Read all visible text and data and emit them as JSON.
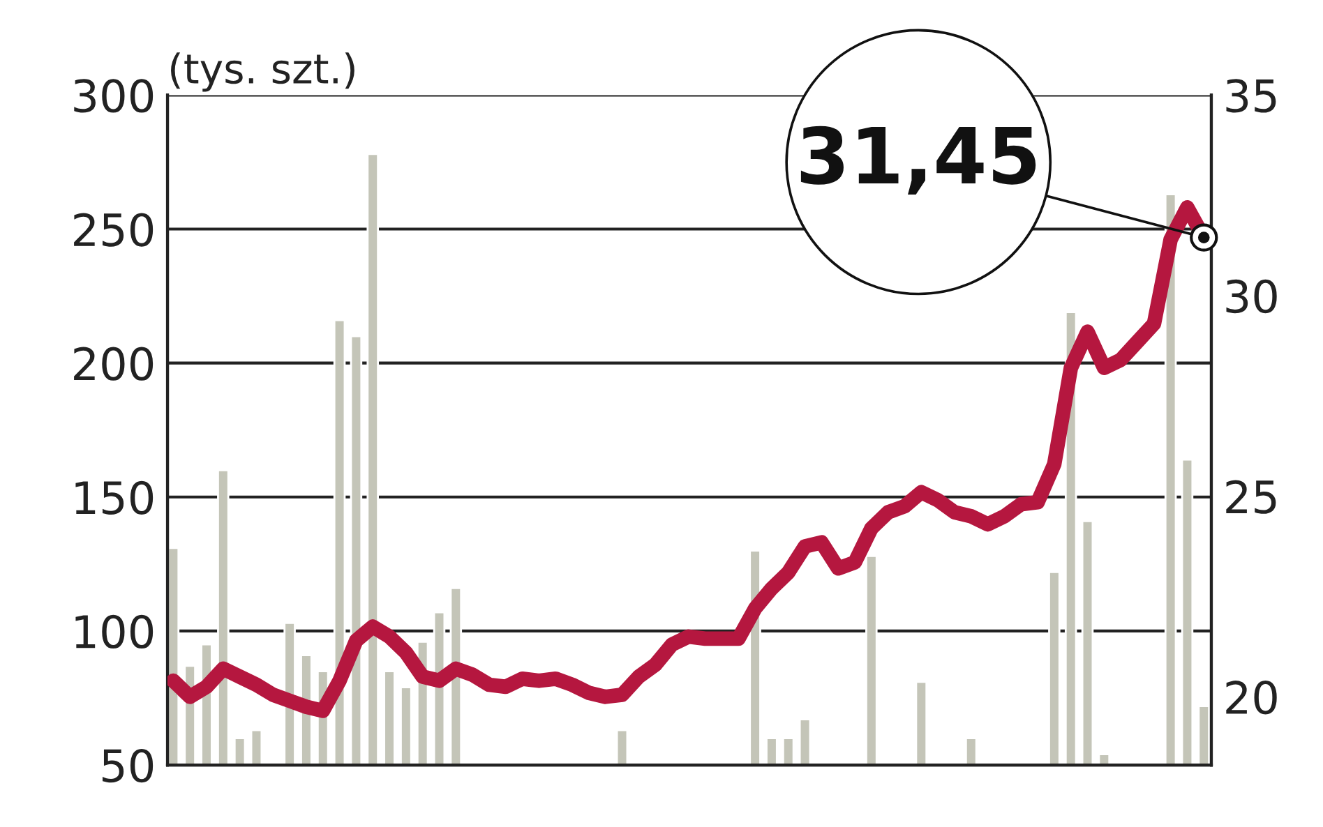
{
  "chart_data": {
    "type": "bar",
    "ylabel": "(tys. szt.)",
    "categories": [
      null,
      null,
      null,
      null,
      null,
      null,
      null,
      null,
      null,
      null,
      null,
      null,
      null,
      null,
      null,
      null,
      null,
      null,
      null,
      null,
      null,
      null,
      null,
      null,
      null,
      null,
      null,
      null,
      null,
      null,
      null,
      null,
      null,
      null,
      null,
      null,
      null,
      null,
      null,
      null,
      null,
      null,
      null,
      null,
      null,
      null,
      null,
      null,
      null,
      null,
      null,
      null,
      null,
      null,
      null,
      null,
      null,
      null,
      null,
      null,
      null,
      null,
      null
    ],
    "series": [
      {
        "color": "#c4c5b8",
        "values": [
          131,
          87,
          95,
          160,
          60,
          63,
          null,
          103,
          91,
          85,
          216,
          210,
          278,
          85,
          79,
          96,
          107,
          116,
          null,
          null,
          null,
          null,
          null,
          null,
          null,
          null,
          null,
          63,
          null,
          null,
          null,
          null,
          null,
          null,
          null,
          130,
          60,
          60,
          67,
          null,
          null,
          null,
          128,
          null,
          null,
          81,
          null,
          null,
          60,
          null,
          null,
          null,
          null,
          122,
          219,
          141,
          54,
          null,
          null,
          null,
          263,
          164,
          72
        ]
      },
      {
        "type": "line",
        "axis": "y2",
        "color": "#b5173f",
        "values": [
          20.4,
          20.0,
          20.25,
          20.7,
          20.5,
          20.3,
          20.05,
          19.9,
          19.75,
          19.65,
          20.4,
          21.4,
          21.75,
          21.5,
          21.1,
          20.5,
          20.4,
          20.7,
          20.55,
          20.3,
          20.25,
          20.45,
          20.4,
          20.45,
          20.3,
          20.1,
          20.0,
          20.05,
          20.5,
          20.8,
          21.3,
          21.5,
          21.45,
          21.45,
          21.45,
          22.2,
          22.7,
          23.1,
          23.75,
          23.85,
          23.2,
          23.35,
          24.2,
          24.6,
          24.75,
          25.1,
          24.9,
          24.6,
          24.5,
          24.3,
          24.5,
          24.8,
          24.85,
          25.8,
          28.2,
          29.1,
          28.2,
          28.4,
          28.85,
          29.3,
          31.4,
          32.2,
          31.45
        ]
      }
    ],
    "ylim": [
      50,
      300
    ],
    "yticks": [
      50,
      100,
      150,
      200,
      250,
      300
    ],
    "y2lim": [
      18.3,
      35
    ],
    "y2ticks": [
      20,
      25,
      30,
      35
    ],
    "grid": "y",
    "legend": false,
    "tick_labels": "y",
    "annotations": [
      "31,45"
    ]
  }
}
